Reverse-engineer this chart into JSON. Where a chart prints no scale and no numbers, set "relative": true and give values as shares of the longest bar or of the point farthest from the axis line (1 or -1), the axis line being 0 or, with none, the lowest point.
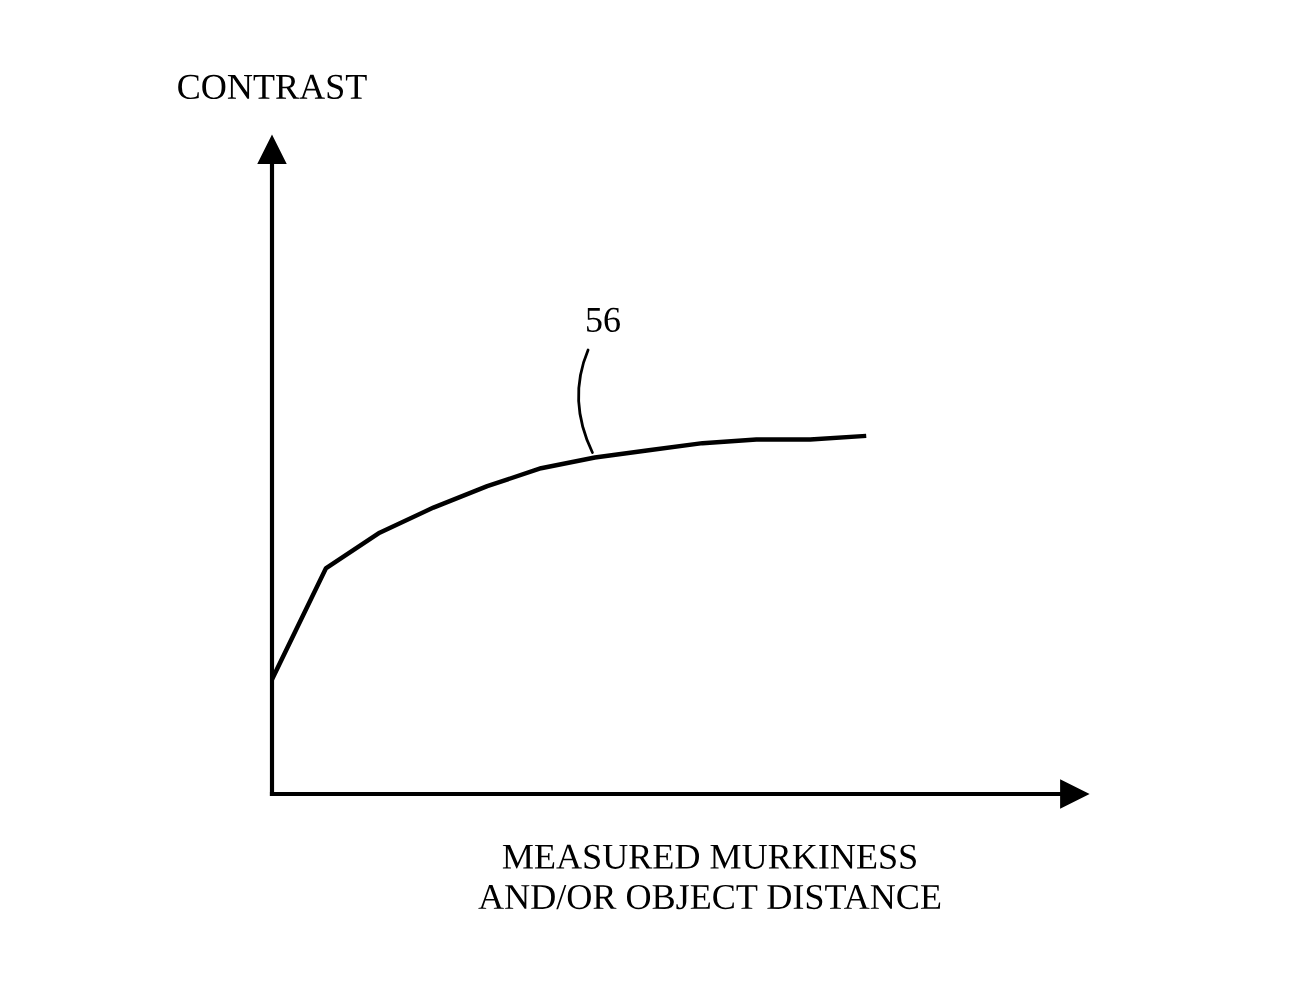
{
  "chart_data": {
    "type": "line",
    "relative": true,
    "xlabel": "MEASURED MURKINESS\nAND/OR OBJECT DISTANCE",
    "categories": [
      null,
      null,
      null,
      null,
      null,
      null,
      null,
      null,
      null,
      null,
      null,
      null
    ],
    "series": [
      {
        "color": "#000000",
        "values": [
          0.32,
          0.63,
          0.73,
          0.8,
          0.86,
          0.91,
          0.94,
          0.96,
          0.98,
          0.99,
          0.99,
          1.0
        ]
      }
    ],
    "annotations": [
      "CONTRAST",
      "56"
    ],
    "marker": "none",
    "line_style": "solid",
    "legend": false
  }
}
